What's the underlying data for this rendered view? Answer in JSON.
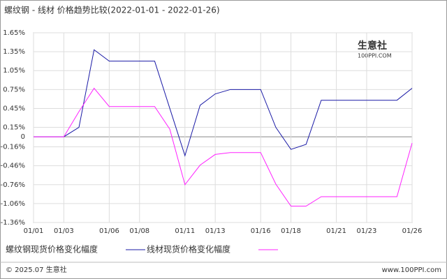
{
  "chart_data": {
    "type": "line",
    "title": "螺纹钢 - 线材 价格趋势比较(2022-01-01 - 2022-01-26)",
    "categories": [
      "01/01",
      null,
      "01/03",
      null,
      null,
      "01/06",
      null,
      "01/08",
      null,
      null,
      "01/11",
      null,
      "01/13",
      null,
      null,
      "01/16",
      null,
      "01/18",
      null,
      null,
      "01/21",
      null,
      "01/23",
      null,
      null,
      "01/26"
    ],
    "series": [
      {
        "name": "螺纹钢现货价格变化幅度",
        "color": "#1a1aa6",
        "values": [
          0,
          0,
          0,
          0.15,
          1.38,
          1.2,
          1.2,
          1.2,
          1.2,
          0.45,
          -0.3,
          0.5,
          0.68,
          0.75,
          0.75,
          0.75,
          0.15,
          -0.2,
          -0.12,
          0.58,
          0.58,
          0.58,
          0.58,
          0.58,
          0.58,
          0.77
        ]
      },
      {
        "name": "线材现货价格变化幅度",
        "color": "#ff22ff",
        "values": [
          0,
          0,
          0,
          0.4,
          0.77,
          0.48,
          0.48,
          0.48,
          0.48,
          0.12,
          -0.76,
          -0.45,
          -0.28,
          -0.25,
          -0.25,
          -0.25,
          -0.75,
          -1.1,
          -1.1,
          -0.95,
          -0.95,
          -0.95,
          -0.95,
          -0.95,
          -0.95,
          -0.1
        ]
      }
    ],
    "ylim": [
      -1.36,
      1.65
    ],
    "yticks": [
      {
        "value": 1.65,
        "label": "1.65%"
      },
      {
        "value": 1.35,
        "label": "1.35%"
      },
      {
        "value": 1.05,
        "label": "1.05%"
      },
      {
        "value": 0.75,
        "label": "0.75%"
      },
      {
        "value": 0.45,
        "label": "0.45%"
      },
      {
        "value": 0.15,
        "label": "0.15%"
      },
      0,
      {
        "value": -0.16,
        "label": "-0.16%"
      },
      {
        "value": -0.46,
        "label": "-0.46%"
      },
      {
        "value": -0.76,
        "label": "-0.76%"
      },
      {
        "value": -1.06,
        "label": "-1.06%"
      },
      {
        "value": -1.36,
        "label": "-1.36%"
      }
    ],
    "grid": true,
    "watermark": [
      "生意社",
      "100PPI.COM"
    ],
    "footer": {
      "left": "© 2025.07 生意社",
      "right": "www.100PPI.com"
    }
  }
}
